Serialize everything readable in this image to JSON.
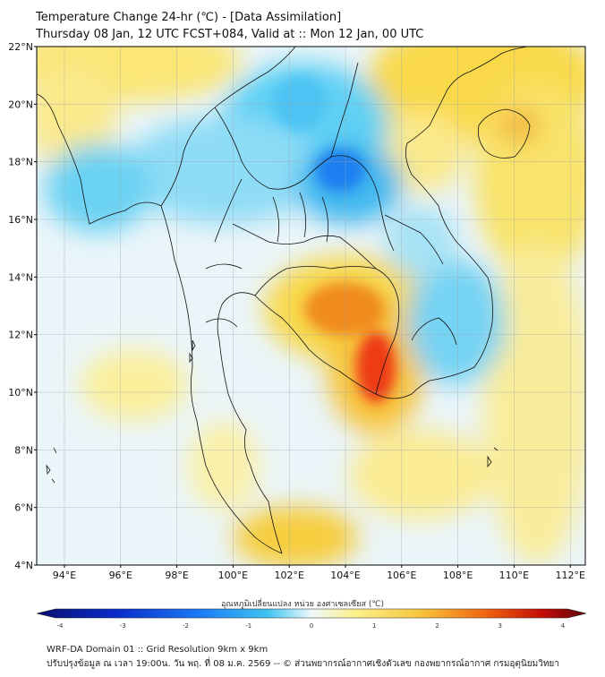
{
  "title": {
    "line1": "Temperature Change 24-hr (℃) - [Data Assimilation]",
    "line2": "Thursday 08 Jan, 12 UTC FCST+084, Valid at :: Mon 12 Jan, 00 UTC"
  },
  "map": {
    "lat_labels": [
      "22°N",
      "20°N",
      "18°N",
      "16°N",
      "14°N",
      "12°N",
      "10°N",
      "8°N",
      "6°N",
      "4°N"
    ],
    "lon_labels": [
      "94°E",
      "96°E",
      "98°E",
      "100°E",
      "102°E",
      "104°E",
      "106°E",
      "108°E",
      "110°E",
      "112°E"
    ]
  },
  "colorbar": {
    "label": "อุณหภูมิเปลี่ยนแปลง หน่วย องศาเซลเซียส (℃)",
    "ticks": [
      "-4",
      "-3",
      "-2",
      "-1",
      "0",
      "1",
      "2",
      "3",
      "4"
    ],
    "colors": {
      "dark_blue": "#08106e",
      "blue": "#1a4fff",
      "cyan": "#3bc4f0",
      "light": "#e8f6fb",
      "yellow": "#f8e24a",
      "orange": "#f5a21e",
      "red": "#ee2b0c",
      "dark_red": "#5e0808"
    }
  },
  "footer": {
    "line1": "WRF-DA Domain 01 :: Grid Resolution 9km x 9km",
    "line2": "ปรับปรุงข้อมูล ณ เวลา 19:00น. วัน พฤ. ที่ 08 ม.ค. 2569 -- © ส่วนพยากรณ์อากาศเชิงตัวเลข กองพยากรณ์อากาศ กรมอุตุนิยมวิทยา"
  }
}
